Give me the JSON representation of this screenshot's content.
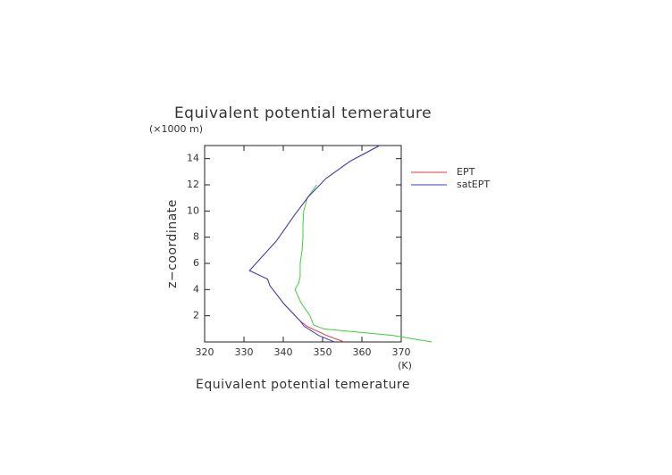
{
  "chart_data": {
    "type": "line",
    "title": "Equivalent potential temerature",
    "x_label": "Equivalent potential temerature",
    "x_unit": "(K)",
    "y_label": "z−coordinate",
    "y_unit": "(×1000 m)",
    "xlim": [
      320,
      370
    ],
    "xticks": [
      320,
      330,
      340,
      350,
      360,
      370
    ],
    "ylim": [
      0,
      15
    ],
    "yticks": [
      2,
      4,
      6,
      8,
      10,
      12,
      14
    ],
    "series": [
      {
        "name": "EPT",
        "color": "#e8343a",
        "x": [
          355.5,
          351,
          346,
          344.3,
          340.2,
          336.6,
          336,
          331.4,
          338.2,
          343,
          346.4,
          350.9,
          357,
          364.5
        ],
        "y": [
          0,
          0.5,
          1.2,
          1.6,
          2.9,
          4.3,
          4.8,
          5.45,
          7.7,
          9.75,
          11.1,
          12.5,
          13.8,
          15
        ]
      },
      {
        "name": "satEPT",
        "color": "#3c3cc8",
        "x": [
          353,
          349,
          345.3,
          344.3,
          340.2,
          336.6,
          336,
          331.4,
          338.2,
          343,
          346.4,
          350.9,
          357,
          364.5
        ],
        "y": [
          0,
          0.5,
          1.2,
          1.6,
          2.9,
          4.3,
          4.8,
          5.45,
          7.7,
          9.75,
          11.1,
          12.5,
          13.8,
          15
        ]
      },
      {
        "color": "#3ccf3c",
        "x": [
          377.7,
          368,
          350.2,
          347.7,
          346.8,
          344.5,
          343,
          343.9,
          344.3,
          344.3,
          344.8,
          345,
          345,
          345.2,
          346.1,
          348.5
        ],
        "y": [
          0,
          0.5,
          1,
          1.3,
          2,
          3,
          4,
          4.5,
          5,
          6,
          7,
          8,
          9,
          10,
          11,
          12
        ]
      }
    ]
  }
}
